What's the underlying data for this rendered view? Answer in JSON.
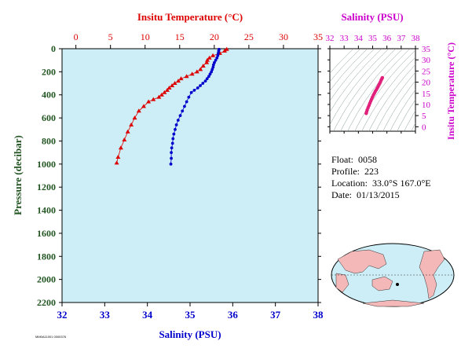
{
  "colors": {
    "temperature": "#dd0000",
    "salinity": "#0000cc",
    "ts_axis": "#cc00cc",
    "ts_points": "#e0207a",
    "pressure_axis": "#225522",
    "plot_bg": "#cdeef6",
    "land": "#f4b8b8",
    "ocean": "#cdeef6"
  },
  "info": {
    "float_label": "Float:",
    "float_value": "0058",
    "profile_label": "Profile:",
    "profile_value": "223",
    "location_label": "Location:",
    "location_value": "33.0°S  167.0°E",
    "date_label": "Date:",
    "date_value": "01/13/2015"
  },
  "footer_code": "MM0A11001 0000376",
  "chart_data": [
    {
      "type": "scatter",
      "ylabel": "Pressure (decibar)",
      "ylim": [
        2200,
        0
      ],
      "y_ticks": [
        0,
        200,
        400,
        600,
        800,
        1000,
        1200,
        1400,
        1600,
        1800,
        2000,
        2200
      ],
      "top_axis": {
        "label": "Insitu Temperature (°C)",
        "lim": [
          -2,
          35
        ],
        "ticks": [
          0,
          5,
          10,
          15,
          20,
          25,
          30,
          35
        ]
      },
      "bottom_axis": {
        "label": "Salinity (PSU)",
        "lim": [
          32,
          38
        ],
        "ticks": [
          32,
          33,
          34,
          35,
          36,
          37,
          38
        ]
      },
      "series": [
        {
          "marker": "triangle",
          "axis": "top",
          "x": [
            21.8,
            21.5,
            20.8,
            19.8,
            19.3,
            19.0,
            18.9,
            18.4,
            18.0,
            17.5,
            16.8,
            16.0,
            15.2,
            14.8,
            14.3,
            13.9,
            13.5,
            13.2,
            12.8,
            12.4,
            12.0,
            11.2,
            10.5,
            9.8,
            9.1,
            8.5,
            8.0,
            7.5,
            7.0,
            6.5,
            6.1,
            5.9
          ],
          "y": [
            5,
            20,
            40,
            60,
            80,
            100,
            120,
            150,
            180,
            200,
            220,
            240,
            260,
            280,
            300,
            320,
            340,
            360,
            380,
            400,
            420,
            440,
            460,
            500,
            540,
            600,
            660,
            720,
            790,
            860,
            940,
            990
          ]
        },
        {
          "marker": "circle",
          "axis": "bottom",
          "x": [
            35.68,
            35.67,
            35.66,
            35.65,
            35.63,
            35.6,
            35.57,
            35.55,
            35.54,
            35.52,
            35.5,
            35.47,
            35.44,
            35.4,
            35.36,
            35.3,
            35.24,
            35.18,
            35.1,
            35.03,
            34.97,
            34.92,
            34.87,
            34.82,
            34.77,
            34.72,
            34.68,
            34.65,
            34.62,
            34.6,
            34.59,
            34.57,
            34.56,
            34.56,
            34.55
          ],
          "y": [
            5,
            20,
            40,
            60,
            80,
            100,
            120,
            140,
            160,
            180,
            200,
            220,
            240,
            260,
            280,
            300,
            320,
            340,
            360,
            380,
            420,
            460,
            500,
            540,
            580,
            620,
            660,
            700,
            740,
            780,
            820,
            860,
            900,
            950,
            1000
          ]
        }
      ]
    },
    {
      "type": "scatter",
      "title": "Salinity (PSU)",
      "ylabel": "Insitu Temperature (°C)",
      "xlim": [
        32,
        38
      ],
      "ylim": [
        -2,
        35
      ],
      "x_ticks": [
        32,
        33,
        34,
        35,
        36,
        37,
        38
      ],
      "y_ticks": [
        0,
        5,
        10,
        15,
        20,
        25,
        30,
        35
      ],
      "series": [
        {
          "marker": "circle",
          "x": [
            34.55,
            34.58,
            34.62,
            34.68,
            34.74,
            34.8,
            34.86,
            34.92,
            34.98,
            35.05,
            35.12,
            35.18,
            35.25,
            35.32,
            35.38,
            35.44,
            35.5,
            35.55,
            35.6,
            35.65,
            35.68
          ],
          "y": [
            6.0,
            6.8,
            7.6,
            8.6,
            9.5,
            10.5,
            11.4,
            12.3,
            13.2,
            14.2,
            15.0,
            15.8,
            16.5,
            17.3,
            18.0,
            18.8,
            19.5,
            20.2,
            21.0,
            21.6,
            22.0
          ]
        }
      ]
    }
  ]
}
